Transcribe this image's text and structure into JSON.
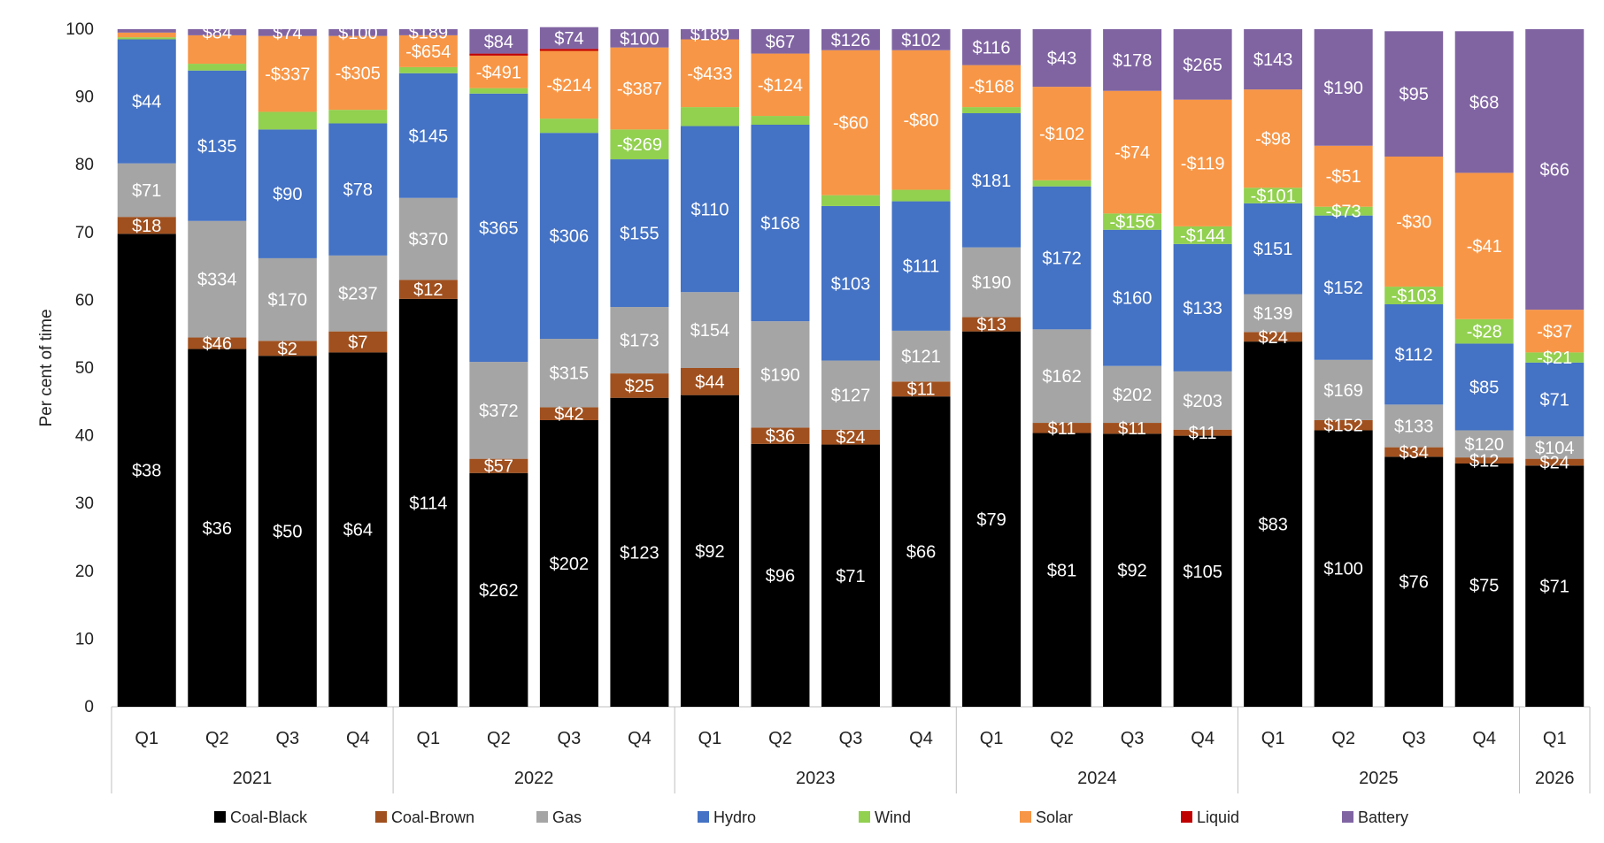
{
  "chart_data": {
    "type": "bar",
    "stacked": true,
    "ylabel": "Per cent of time",
    "ylim": [
      0,
      100
    ],
    "yticks": [
      0,
      10,
      20,
      30,
      40,
      50,
      60,
      70,
      80,
      90,
      100
    ],
    "grid": false,
    "legend_position": "bottom",
    "categories": [
      "Q1",
      "Q2",
      "Q3",
      "Q4",
      "Q1",
      "Q2",
      "Q3",
      "Q4",
      "Q1",
      "Q2",
      "Q3",
      "Q4",
      "Q1",
      "Q2",
      "Q3",
      "Q4",
      "Q1",
      "Q2",
      "Q3",
      "Q4",
      "Q1"
    ],
    "groups": [
      {
        "label": "2021",
        "count": 4
      },
      {
        "label": "2022",
        "count": 4
      },
      {
        "label": "2023",
        "count": 4
      },
      {
        "label": "2024",
        "count": 4
      },
      {
        "label": "2025",
        "count": 4
      },
      {
        "label": "2026",
        "count": 1
      }
    ],
    "series": [
      {
        "name": "Coal-Black",
        "color": "#000000",
        "label_color": "#ffffff",
        "values": [
          69.8,
          52.8,
          51.8,
          52.3,
          60.2,
          34.5,
          42.3,
          45.6,
          46.0,
          38.8,
          38.7,
          45.8,
          55.4,
          40.4,
          40.3,
          40.0,
          53.9,
          40.8,
          36.9,
          35.9,
          35.6
        ],
        "labels": [
          "$38",
          "$36",
          "$50",
          "$64",
          "$114",
          "$262",
          "$202",
          "$123",
          "$92",
          "$96",
          "$71",
          "$66",
          "$79",
          "$81",
          "$92",
          "$105",
          "$83",
          "$100",
          "$76",
          "$75",
          "$71"
        ]
      },
      {
        "name": "Coal-Brown",
        "color": "#A0501E",
        "label_color": "#ffffff",
        "values": [
          2.5,
          1.7,
          2.2,
          3.1,
          2.8,
          2.1,
          1.9,
          3.6,
          4.0,
          2.4,
          2.2,
          2.2,
          2.1,
          1.5,
          1.6,
          0.9,
          1.4,
          1.5,
          1.4,
          0.9,
          1.0
        ],
        "labels": [
          "$18",
          "$46",
          "$2",
          "$7",
          "$12",
          "$57",
          "$42",
          "$25",
          "$44",
          "$36",
          "$24",
          "$11",
          "$13",
          "$11",
          "$11",
          "$11",
          "$24",
          "$152",
          "$34",
          "$12",
          "$24"
        ]
      },
      {
        "name": "Gas",
        "color": "#A5A5A5",
        "label_color": "#ffffff",
        "values": [
          7.9,
          17.2,
          12.2,
          11.2,
          12.1,
          14.3,
          10.1,
          9.8,
          11.2,
          15.7,
          10.2,
          7.5,
          10.3,
          13.8,
          8.4,
          8.6,
          5.6,
          8.9,
          6.3,
          4.0,
          3.3
        ],
        "labels": [
          "$71",
          "$334",
          "$170",
          "$237",
          "$370",
          "$372",
          "$315",
          "$173",
          "$154",
          "$190",
          "$127",
          "$121",
          "$190",
          "$162",
          "$202",
          "$203",
          "$139",
          "$169",
          "$133",
          "$120",
          "$104"
        ]
      },
      {
        "name": "Hydro",
        "color": "#4472C4",
        "label_color": "#ffffff",
        "values": [
          18.3,
          22.2,
          19.0,
          19.5,
          18.4,
          39.6,
          30.4,
          21.8,
          24.5,
          29.0,
          22.8,
          19.1,
          19.8,
          21.1,
          20.1,
          18.8,
          13.4,
          21.3,
          14.8,
          12.8,
          10.9
        ],
        "labels": [
          "$44",
          "$135",
          "$90",
          "$78",
          "$145",
          "$365",
          "$306",
          "$155",
          "$110",
          "$168",
          "$103",
          "$111",
          "$181",
          "$172",
          "$160",
          "$133",
          "$151",
          "$152",
          "$112",
          "$85",
          "$71"
        ]
      },
      {
        "name": "Wind",
        "color": "#92D050",
        "label_color": "#ffffff",
        "values": [
          0.3,
          1.0,
          2.6,
          2.0,
          0.9,
          0.8,
          2.1,
          4.4,
          2.8,
          1.3,
          1.6,
          1.7,
          0.9,
          0.9,
          2.4,
          2.6,
          2.3,
          1.3,
          2.6,
          3.6,
          1.5
        ],
        "labels": [
          "",
          "",
          "",
          "",
          "",
          "",
          "",
          "-$269",
          "",
          "",
          "",
          "",
          "",
          "",
          "-$156",
          "-$144",
          "-$101",
          "-$73",
          "-$103",
          "-$28",
          "-$21"
        ]
      },
      {
        "name": "Solar",
        "color": "#F79646",
        "label_color": "#ffffff",
        "values": [
          0.7,
          4.2,
          11.2,
          10.9,
          4.7,
          4.8,
          10.0,
          12.1,
          10.0,
          9.2,
          21.4,
          20.6,
          6.2,
          13.8,
          18.1,
          18.7,
          14.5,
          9.0,
          19.2,
          21.6,
          6.3
        ],
        "labels": [
          "",
          "",
          "-$337",
          "-$305",
          "-$654",
          "-$491",
          "-$214",
          "-$387",
          "-$433",
          "-$124",
          "-$60",
          "-$80",
          "-$168",
          "-$102",
          "-$74",
          "-$119",
          "-$98",
          "-$51",
          "-$30",
          "-$41",
          "-$37"
        ]
      },
      {
        "name": "Liquid",
        "color": "#C00000",
        "label_color": "#ffffff",
        "values": [
          0,
          0,
          0,
          0,
          0,
          0.3,
          0.3,
          0,
          0,
          0,
          0,
          0,
          0,
          0,
          0,
          0,
          0,
          0,
          0,
          0,
          0
        ],
        "labels": [
          "",
          "",
          "",
          "",
          "",
          "",
          "",
          "",
          "",
          "",
          "",
          "",
          "",
          "",
          "",
          "",
          "",
          "",
          "",
          "",
          ""
        ]
      },
      {
        "name": "Battery",
        "color": "#8064A2",
        "label_color": "#ffffff",
        "values": [
          0.5,
          0.9,
          1.0,
          1.0,
          0.9,
          3.6,
          3.2,
          2.7,
          1.5,
          3.6,
          3.1,
          3.1,
          5.3,
          8.5,
          9.1,
          10.4,
          8.9,
          17.2,
          18.5,
          20.9,
          41.4
        ],
        "labels": [
          "",
          "$84",
          "$74",
          "$100",
          "$189",
          "$84",
          "$74",
          "$100",
          "$189",
          "$67",
          "$126",
          "$102",
          "$116",
          "$43",
          "$178",
          "$265",
          "$143",
          "$190",
          "$95",
          "$68",
          "$66"
        ]
      }
    ]
  }
}
